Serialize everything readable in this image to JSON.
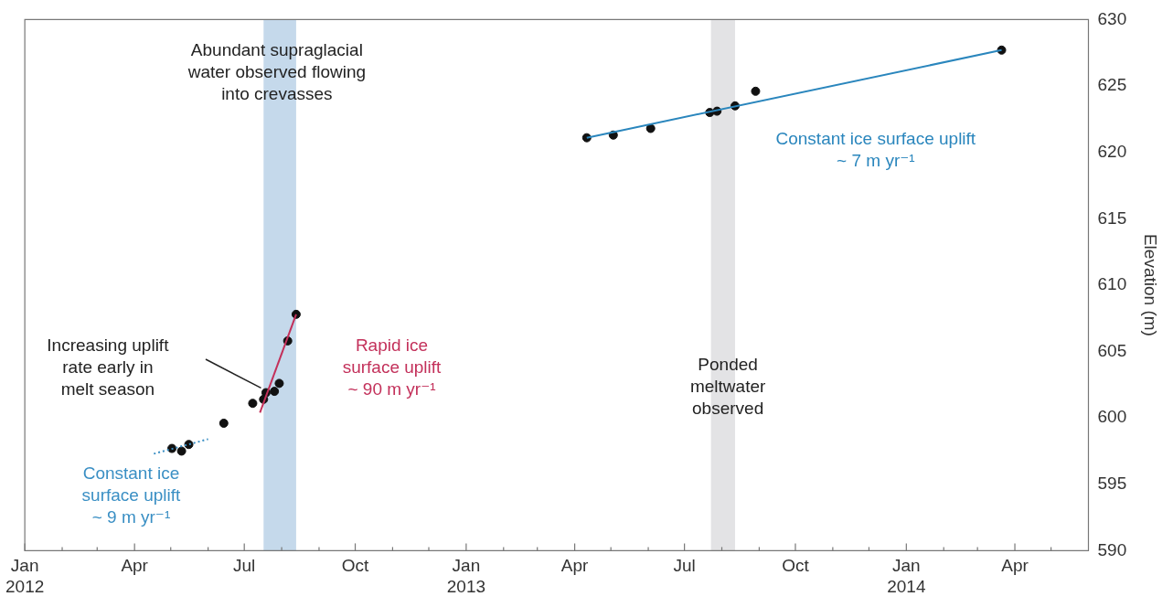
{
  "chart_data": {
    "type": "scatter",
    "ylabel": "Elevation (m)",
    "xlim": [
      "2012-01-01",
      "2014-06-01"
    ],
    "ylim": [
      590,
      630
    ],
    "yticks": [
      590,
      595,
      600,
      605,
      610,
      615,
      620,
      625,
      630
    ],
    "xticks": [
      {
        "value": "2012-01-01",
        "label": "Jan\n2012"
      },
      {
        "value": "2012-02-01",
        "label": null
      },
      {
        "value": "2012-03-01",
        "label": null
      },
      {
        "value": "2012-04-01",
        "label": "Apr"
      },
      {
        "value": "2012-05-01",
        "label": null
      },
      {
        "value": "2012-06-01",
        "label": null
      },
      {
        "value": "2012-07-01",
        "label": "Jul"
      },
      {
        "value": "2012-08-01",
        "label": null
      },
      {
        "value": "2012-09-01",
        "label": null
      },
      {
        "value": "2012-10-01",
        "label": "Oct"
      },
      {
        "value": "2012-11-01",
        "label": null
      },
      {
        "value": "2012-12-01",
        "label": null
      },
      {
        "value": "2013-01-01",
        "label": "Jan\n2013"
      },
      {
        "value": "2013-02-01",
        "label": null
      },
      {
        "value": "2013-03-01",
        "label": null
      },
      {
        "value": "2013-04-01",
        "label": "Apr"
      },
      {
        "value": "2013-05-01",
        "label": null
      },
      {
        "value": "2013-06-01",
        "label": null
      },
      {
        "value": "2013-07-01",
        "label": "Jul"
      },
      {
        "value": "2013-08-01",
        "label": null
      },
      {
        "value": "2013-09-01",
        "label": null
      },
      {
        "value": "2013-10-01",
        "label": "Oct"
      },
      {
        "value": "2013-11-01",
        "label": null
      },
      {
        "value": "2013-12-01",
        "label": null
      },
      {
        "value": "2014-01-01",
        "label": "Jan\n2014"
      },
      {
        "value": "2014-02-01",
        "label": null
      },
      {
        "value": "2014-03-01",
        "label": null
      },
      {
        "value": "2014-04-01",
        "label": "Apr"
      },
      {
        "value": "2014-05-01",
        "label": null
      }
    ],
    "grid": false,
    "legend": false,
    "marker": "circle",
    "series": [
      {
        "type": "line",
        "color": "#3a8fc4",
        "line_style": "dotted",
        "marker": "none",
        "x": [
          "2012-04-17",
          "2012-06-01"
        ],
        "values": [
          597.3,
          598.4
        ]
      },
      {
        "type": "line",
        "color": "#c3305a",
        "line_style": "solid",
        "marker": "none",
        "x": [
          "2012-07-14",
          "2012-08-13"
        ],
        "values": [
          600.4,
          607.8
        ]
      },
      {
        "type": "line",
        "color": "#2a86bd",
        "line_style": "solid",
        "marker": "none",
        "x": [
          "2013-04-11",
          "2014-03-21"
        ],
        "values": [
          621.1,
          627.7
        ]
      },
      {
        "color": "#111111",
        "x": [
          "2012-05-02",
          "2012-05-10",
          "2012-05-16",
          "2012-06-14",
          "2012-07-08",
          "2012-07-17",
          "2012-07-19",
          "2012-07-26",
          "2012-07-30",
          "2012-08-06",
          "2012-08-13",
          "2013-04-11",
          "2013-05-03",
          "2013-06-03",
          "2013-07-22",
          "2013-07-28",
          "2013-08-12",
          "2013-08-29",
          "2014-03-21"
        ],
        "values": [
          597.7,
          597.5,
          598.0,
          599.6,
          601.1,
          601.4,
          601.9,
          602.0,
          602.6,
          605.8,
          607.8,
          621.1,
          621.3,
          621.8,
          623.0,
          623.1,
          623.5,
          624.6,
          627.7
        ]
      }
    ],
    "bands": [
      {
        "axis": "x",
        "from": "2012-07-17",
        "to": "2012-08-13",
        "color": "#c5d9eb"
      },
      {
        "axis": "x",
        "from": "2013-07-23",
        "to": "2013-08-12",
        "color": "#e3e3e5"
      }
    ],
    "annotations": [
      "Abundant supraglacial\nwater observed flowing\ninto crevasses",
      "Increasing uplift\nrate early in\nmelt season",
      "Rapid ice\nsurface uplift\n~ 90 m yr⁻¹",
      "Constant ice\nsurface uplift\n~ 9 m yr⁻¹",
      "Constant ice surface uplift\n~ 7 m yr⁻¹",
      "Ponded\nmeltwater\nobserved"
    ]
  }
}
